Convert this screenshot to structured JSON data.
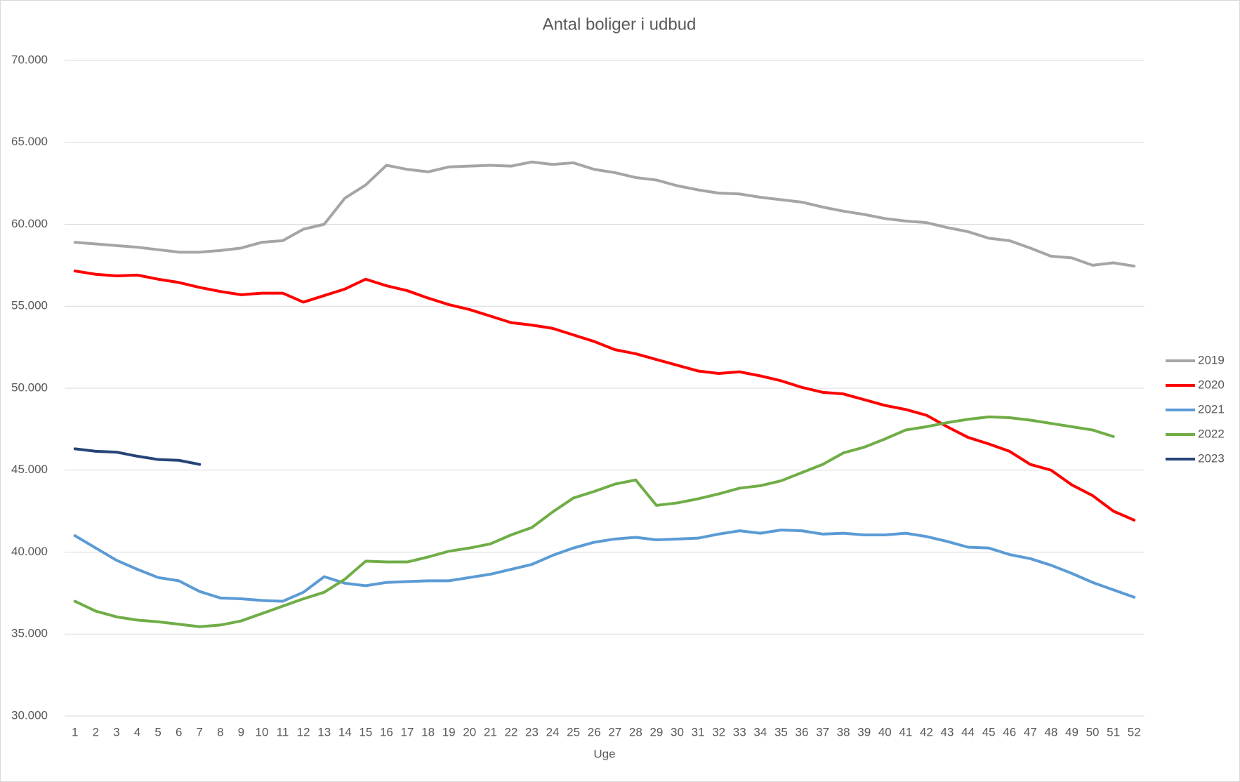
{
  "chart_data": {
    "type": "line",
    "title": "Antal boliger i udbud",
    "x_label": "Uge",
    "categories": [
      1,
      2,
      3,
      4,
      5,
      6,
      7,
      8,
      9,
      10,
      11,
      12,
      13,
      14,
      15,
      16,
      17,
      18,
      19,
      20,
      21,
      22,
      23,
      24,
      25,
      26,
      27,
      28,
      29,
      30,
      31,
      32,
      33,
      34,
      35,
      36,
      37,
      38,
      39,
      40,
      41,
      42,
      43,
      44,
      45,
      46,
      47,
      48,
      49,
      50,
      51,
      52
    ],
    "ylim": [
      30000,
      70000
    ],
    "yticks": [
      {
        "value": 30000,
        "label": "30.000"
      },
      {
        "value": 35000,
        "label": "35.000"
      },
      {
        "value": 40000,
        "label": "40.000"
      },
      {
        "value": 45000,
        "label": "45.000"
      },
      {
        "value": 50000,
        "label": "50.000"
      },
      {
        "value": 55000,
        "label": "55.000"
      },
      {
        "value": 60000,
        "label": "60.000"
      },
      {
        "value": 65000,
        "label": "65.000"
      },
      {
        "value": 70000,
        "label": "70.000"
      }
    ],
    "grid": true,
    "legend": "right",
    "series": [
      {
        "name": "2019",
        "color": "#a5a5a5",
        "values": [
          58900,
          58800,
          58700,
          58600,
          58450,
          58300,
          58300,
          58400,
          58550,
          58900,
          59000,
          59700,
          60000,
          61600,
          62400,
          63600,
          63350,
          63200,
          63500,
          63550,
          63600,
          63550,
          63800,
          63650,
          63750,
          63350,
          63150,
          62850,
          62700,
          62350,
          62100,
          61900,
          61850,
          61650,
          61500,
          61350,
          61050,
          60800,
          60600,
          60350,
          60200,
          60100,
          59800,
          59550,
          59150,
          59000,
          58550,
          58050,
          57950,
          57500,
          57650,
          57450
        ]
      },
      {
        "name": "2020",
        "color": "#ff0000",
        "values": [
          57150,
          56950,
          56850,
          56900,
          56650,
          56450,
          56150,
          55900,
          55700,
          55800,
          55800,
          55250,
          55650,
          56050,
          56650,
          56250,
          55950,
          55500,
          55100,
          54800,
          54400,
          54000,
          53850,
          53650,
          53250,
          52850,
          52350,
          52100,
          51750,
          51400,
          51050,
          50900,
          51000,
          50750,
          50450,
          50050,
          49750,
          49650,
          49300,
          48950,
          48700,
          48350,
          47650,
          47000,
          46600,
          46150,
          45350,
          45000,
          44100,
          43450,
          42500,
          41950
        ]
      },
      {
        "name": "2021",
        "color": "#5b9bd5",
        "values": [
          41000,
          40250,
          39500,
          38950,
          38450,
          38250,
          37600,
          37200,
          37150,
          37050,
          37000,
          37550,
          38500,
          38100,
          37950,
          38150,
          38200,
          38250,
          38250,
          38450,
          38650,
          38950,
          39250,
          39800,
          40250,
          40600,
          40800,
          40900,
          40750,
          40800,
          40850,
          41100,
          41300,
          41150,
          41350,
          41300,
          41100,
          41150,
          41050,
          41050,
          41150,
          40950,
          40650,
          40300,
          40250,
          39850,
          39600,
          39200,
          38700,
          38150,
          37700,
          37250
        ]
      },
      {
        "name": "2022",
        "color": "#70ad47",
        "values": [
          37000,
          36400,
          36050,
          35850,
          35750,
          35600,
          35450,
          35550,
          35800,
          36250,
          36700,
          37150,
          37550,
          38350,
          39450,
          39400,
          39400,
          39700,
          40050,
          40250,
          40500,
          41050,
          41500,
          42450,
          43300,
          43700,
          44150,
          44400,
          42850,
          43000,
          43250,
          43550,
          43900,
          44050,
          44350,
          44850,
          45350,
          46050,
          46400,
          46900,
          47450,
          47650,
          47900,
          48100,
          48250,
          48200,
          48050,
          47850,
          47650,
          47450,
          47050,
          null
        ]
      },
      {
        "name": "2023",
        "color": "#264478",
        "values": [
          46300,
          46150,
          46100,
          45850,
          45650,
          45600,
          45350,
          null,
          null,
          null,
          null,
          null,
          null,
          null,
          null,
          null,
          null,
          null,
          null,
          null,
          null,
          null,
          null,
          null,
          null,
          null,
          null,
          null,
          null,
          null,
          null,
          null,
          null,
          null,
          null,
          null,
          null,
          null,
          null,
          null,
          null,
          null,
          null,
          null,
          null,
          null,
          null,
          null,
          null,
          null,
          null,
          null
        ]
      }
    ]
  }
}
